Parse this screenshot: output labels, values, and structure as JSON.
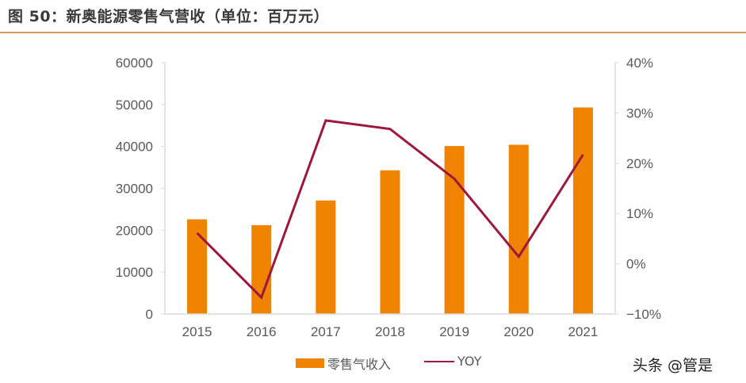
{
  "figure": {
    "title": "图 50：新奥能源零售气营收（单位：百万元）",
    "watermark": "头条 @管是"
  },
  "colors": {
    "bar": "#F08300",
    "line": "#A0173C",
    "axis": "#D9D9D9",
    "title_rule": "#D49A5A",
    "tick_text": "#595959"
  },
  "legend": {
    "bar_label": "零售气收入",
    "line_label": "YOY"
  },
  "chart_data": {
    "type": "bar+line",
    "title": "新奥能源零售气营收（单位：百万元）",
    "categories": [
      "2015",
      "2016",
      "2017",
      "2018",
      "2019",
      "2020",
      "2021"
    ],
    "series": [
      {
        "name": "零售气收入",
        "type": "bar",
        "axis": "left",
        "values": [
          22600,
          21200,
          27100,
          34300,
          40100,
          40400,
          49300
        ]
      },
      {
        "name": "YOY",
        "type": "line",
        "axis": "right",
        "unit": "%",
        "values": [
          6.1,
          -6.7,
          28.5,
          26.8,
          16.9,
          1.4,
          21.7
        ]
      }
    ],
    "left_axis": {
      "min": 0,
      "max": 60000,
      "ticks": [
        "0",
        "10000",
        "20000",
        "30000",
        "40000",
        "50000",
        "60000"
      ]
    },
    "right_axis": {
      "min": -10,
      "max": 40,
      "ticks": [
        "−10%",
        "0%",
        "10%",
        "20%",
        "30%",
        "40%"
      ]
    },
    "xlabel": "",
    "ylabel": "",
    "grid": false,
    "legend_position": "bottom"
  }
}
